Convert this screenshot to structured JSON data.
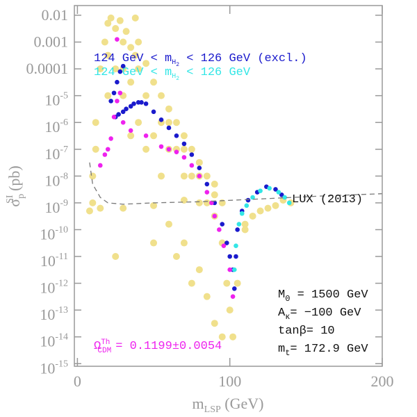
{
  "chart_data": {
    "type": "scatter",
    "xlim": [
      -2,
      200
    ],
    "xticks": [
      0,
      100,
      200
    ],
    "ylim": [
      8e-16,
      0.023
    ],
    "log_y": true,
    "yticks": [
      0.01,
      0.001,
      0.0001,
      {
        "value": 1e-05,
        "label": "10",
        "exponent": "-5"
      },
      {
        "value": 1e-06,
        "label": "10",
        "exponent": "-6"
      },
      {
        "value": 1e-07,
        "label": "10",
        "exponent": "-7"
      },
      {
        "value": 1e-08,
        "label": "10",
        "exponent": "-8"
      },
      {
        "value": 1e-09,
        "label": "10",
        "exponent": "-9"
      },
      {
        "value": 1e-10,
        "label": "10",
        "exponent": "-10"
      },
      {
        "value": 1e-11,
        "label": "10",
        "exponent": "-11"
      },
      {
        "value": 1e-12,
        "label": "10",
        "exponent": "-12"
      },
      {
        "value": 1e-13,
        "label": "10",
        "exponent": "-13"
      },
      {
        "value": 1e-14,
        "label": "10",
        "exponent": "-14"
      },
      {
        "value": 1e-15,
        "label": "10",
        "exponent": "-15"
      }
    ],
    "x_label": [
      "m",
      "LSP",
      " (GeV)"
    ],
    "y_label": [
      "σ",
      "p",
      "SI",
      " (pb)"
    ],
    "legend": [
      {
        "parts": [
          "124 GeV < m",
          "H",
          "2",
          " < 126 GeV (excl.)"
        ],
        "color": "#1a1acc"
      },
      {
        "parts": [
          "124 GeV < m",
          "H",
          "2",
          " < 126 GeV"
        ],
        "color": "#33e6e6"
      }
    ],
    "annotations": {
      "lux": "LUX (2013)",
      "omega": [
        "Ω",
        "Th",
        "CDM",
        "= 0.1199±0.0054"
      ],
      "m0": [
        "M",
        "0",
        " = 1500 GeV"
      ],
      "akappa": [
        "A",
        "κ",
        "= −100 GeV"
      ],
      "tanb": "tanβ= 10",
      "mt": [
        "m",
        "t",
        "= 172.9 GeV"
      ]
    },
    "series": [
      {
        "color": "#f0e08c",
        "marker": "dot",
        "x": [
          10,
          12,
          15,
          18,
          20,
          22,
          25,
          28,
          30,
          32,
          35,
          38,
          40,
          45,
          50,
          55,
          60,
          65,
          70,
          75,
          80,
          85,
          90,
          20,
          30,
          40,
          50,
          60,
          70,
          80,
          90,
          95,
          98,
          100,
          102,
          105,
          110,
          115,
          120,
          130,
          140,
          15,
          30,
          50,
          70,
          90,
          60,
          70,
          80,
          85,
          90,
          95,
          75,
          65,
          55,
          45,
          35,
          25,
          50,
          38,
          10,
          12,
          8,
          110,
          125,
          135,
          25,
          35,
          45,
          55,
          65,
          75,
          85,
          95,
          20,
          30,
          40,
          60,
          70,
          80
        ],
        "values": [
          1e-09,
          1e-06,
          0.0001,
          0.001,
          0.005,
          0.0079,
          0.0032,
          0.0063,
          0.001,
          0.0025,
          0.00063,
          0.00032,
          0.0001,
          0.00016,
          3.2e-05,
          1e-05,
          3.2e-06,
          1e-06,
          3.2e-07,
          1e-07,
          3.2e-08,
          1e-08,
          5e-09,
          1e-05,
          1e-05,
          1e-06,
          3.2e-07,
          1e-07,
          1e-08,
          1e-09,
          3.2e-10,
          3.2e-11,
          1e-12,
          1e-13,
          1e-14,
          1e-12,
          1e-10,
          3.2e-10,
          5e-10,
          7.9e-10,
          1e-09,
          6.3e-10,
          6.3e-10,
          7.9e-10,
          1.26e-09,
          2e-09,
          1.6e-10,
          3.2e-11,
          3.2e-12,
          3.2e-13,
          3.2e-14,
          1e-14,
          1e-12,
          1e-11,
          1e-08,
          1e-07,
          3.2e-07,
          1e-11,
          3.2e-11,
          0.0079,
          1e-08,
          1e-07,
          5e-10,
          1.6e-10,
          6.3e-10,
          1.26e-09,
          0.0001,
          3.2e-05,
          1e-05,
          1e-06,
          1e-07,
          1e-08,
          1e-09,
          1e-09,
          0.00032,
          0.0001,
          0.001,
          1e-06,
          1e-07,
          1e-08
        ]
      },
      {
        "color": "#1a1acc",
        "marker": "dot",
        "x": [
          22,
          24,
          26,
          28,
          30,
          25,
          27,
          30,
          32,
          35,
          37,
          40,
          42,
          45,
          50,
          55,
          60,
          65,
          70,
          75,
          80,
          85,
          90,
          95,
          98,
          100,
          102,
          103,
          104,
          105,
          108,
          112,
          118,
          124,
          130,
          134
        ],
        "values": [
          6.3e-06,
          1.26e-05,
          3.2e-05,
          7.9e-05,
          0.000126,
          1.6e-06,
          2e-06,
          2.5e-06,
          3.2e-06,
          4e-06,
          5e-06,
          5.6e-06,
          5.6e-06,
          5e-06,
          2.5e-06,
          1.26e-06,
          6.3e-07,
          3.2e-07,
          1.6e-07,
          6.3e-08,
          2e-08,
          5e-09,
          1e-09,
          1.6e-10,
          3.2e-11,
          1e-11,
          3.2e-12,
          6.3e-13,
          1e-11,
          1e-10,
          5e-10,
          1.26e-09,
          2.5e-09,
          4e-09,
          3.2e-09,
          2e-09
        ]
      },
      {
        "color": "#33e6e6",
        "marker": "dot",
        "x": [
          103,
          104,
          106,
          108,
          111,
          115,
          120,
          126,
          132,
          136,
          139
        ],
        "values": [
          3.2e-12,
          2.5e-11,
          1.6e-10,
          4e-10,
          7.9e-10,
          1.6e-09,
          2.8e-09,
          3.5e-09,
          2.5e-09,
          1.6e-09,
          1e-09
        ]
      },
      {
        "color": "#ee22ee",
        "marker": "dot",
        "x": [
          15,
          18,
          20,
          22,
          24,
          26,
          28,
          30,
          35,
          45,
          55,
          60,
          65,
          70,
          75,
          80,
          85,
          88,
          90,
          93,
          96,
          100,
          102,
          26
        ],
        "values": [
          2.5e-08,
          6.3e-08,
          1e-07,
          2.5e-07,
          1.6e-06,
          6.3e-06,
          1.26e-05,
          1e-06,
          5e-07,
          3.2e-07,
          1.26e-07,
          1e-07,
          7.9e-08,
          5e-08,
          2.5e-08,
          1e-08,
          2.5e-09,
          1e-09,
          3.2e-10,
          1e-10,
          2.5e-11,
          3.2e-12,
          3.2e-13,
          0.00126
        ]
      },
      {
        "color": "#777777",
        "marker": "dashed-line",
        "x": [
          8,
          10,
          15,
          20,
          30,
          50,
          80,
          120,
          160,
          200
        ],
        "values": [
          3.2e-08,
          5e-09,
          1.6e-09,
          1e-09,
          8.9e-10,
          1e-09,
          1.1e-09,
          1.4e-09,
          1.8e-09,
          2.2e-09
        ]
      }
    ]
  }
}
